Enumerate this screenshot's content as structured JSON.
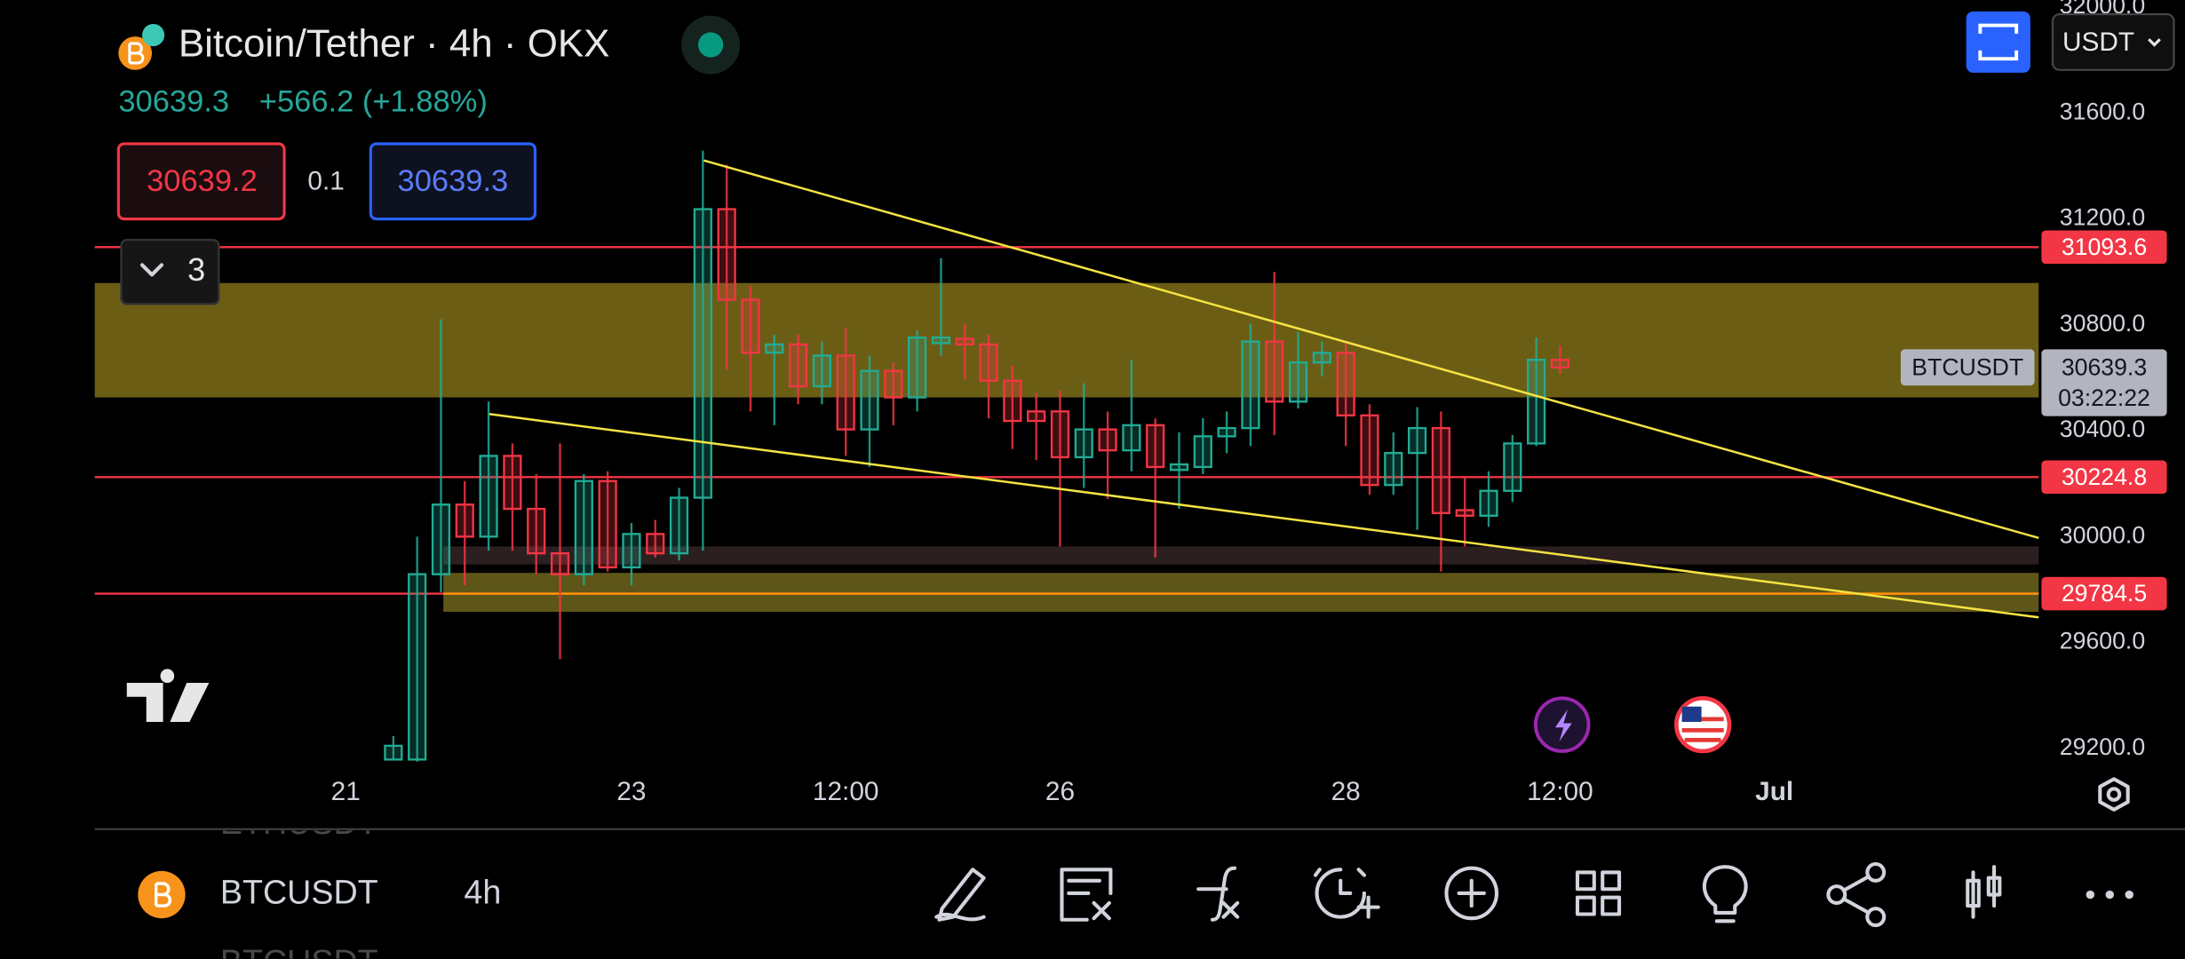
{
  "header": {
    "symbol": "Bitcoin/Tether · 4h · OKX",
    "last": "30639.3",
    "change": "+566.2 (+1.88%)",
    "bid": "30639.2",
    "spread": "0.1",
    "ask": "30639.3",
    "indicators": "3",
    "currency": "USDT"
  },
  "chart_data": {
    "type": "candlestick",
    "x": [
      2,
      3,
      4,
      5,
      6,
      7,
      8,
      9,
      10,
      11,
      12,
      13,
      14,
      15,
      16,
      17,
      18,
      19,
      20,
      21,
      22,
      23,
      24,
      25,
      26,
      27,
      28,
      29,
      30,
      31,
      32,
      33,
      34,
      35,
      36,
      37,
      38,
      39,
      40,
      41,
      42,
      43,
      44,
      45,
      46,
      47,
      48,
      49,
      50,
      51
    ],
    "open": [
      29158,
      29158,
      29858,
      30121,
      30000,
      30305,
      30105,
      29937,
      29858,
      30210,
      29884,
      30010,
      29937,
      30147,
      31237,
      30895,
      30695,
      30726,
      30568,
      30684,
      30405,
      30626,
      30526,
      30731,
      30747,
      30726,
      30589,
      30473,
      30473,
      30300,
      30405,
      30326,
      30421,
      30252,
      30263,
      30379,
      30410,
      30737,
      30510,
      30658,
      30694,
      30458,
      30195,
      30316,
      30410,
      30100,
      30079,
      30173,
      30352,
      30668
    ],
    "high": [
      29247,
      30000,
      30821,
      30210,
      30510,
      30352,
      30236,
      30352,
      30236,
      30247,
      30052,
      30063,
      30184,
      31458,
      31405,
      30947,
      30763,
      30763,
      30737,
      30789,
      30684,
      30658,
      30779,
      31052,
      30805,
      30763,
      30647,
      30542,
      30552,
      30579,
      30473,
      30668,
      30447,
      30394,
      30447,
      30473,
      30805,
      31000,
      30774,
      30737,
      30737,
      30500,
      30394,
      30489,
      30473,
      30226,
      30247,
      30384,
      30752,
      30721
    ],
    "low": [
      29158,
      29150,
      29790,
      29816,
      29947,
      29947,
      29858,
      29537,
      29816,
      29868,
      29816,
      29921,
      29910,
      29947,
      30631,
      30473,
      30421,
      30500,
      30500,
      30305,
      30263,
      30421,
      30473,
      30684,
      30594,
      30447,
      30331,
      30289,
      29963,
      30184,
      30142,
      30247,
      29921,
      30105,
      30236,
      30315,
      30342,
      30384,
      30484,
      30605,
      30342,
      30158,
      30158,
      30026,
      29868,
      29963,
      30037,
      30131,
      30342,
      30615
    ],
    "close": [
      29210,
      29858,
      30121,
      30000,
      30305,
      30105,
      29937,
      29858,
      30210,
      29884,
      30010,
      29937,
      30147,
      31237,
      30895,
      30695,
      30726,
      30568,
      30684,
      30405,
      30626,
      30526,
      30752,
      30752,
      30726,
      30589,
      30437,
      30437,
      30300,
      30405,
      30326,
      30421,
      30263,
      30273,
      30379,
      30410,
      30737,
      30510,
      30658,
      30694,
      30458,
      30195,
      30316,
      30410,
      30089,
      30079,
      30173,
      30352,
      30668,
      30639.3
    ],
    "up_color": "#22ab94",
    "down_color": "#f23645",
    "xlim": [
      -10.54,
      71.1
    ],
    "ylim": [
      28895,
      32026
    ],
    "grid": false,
    "xticks": [
      {
        "value": 0,
        "label": "21"
      },
      {
        "value": 12,
        "label": "23"
      },
      {
        "value": 21,
        "label": "12:00"
      },
      {
        "value": 30,
        "label": "26"
      },
      {
        "value": 42,
        "label": "28"
      },
      {
        "value": 51,
        "label": "12:00"
      },
      {
        "value": 60,
        "label": "Jul"
      }
    ],
    "yticks": [
      {
        "value": 29200,
        "label": "29200.0"
      },
      {
        "value": 29600,
        "label": "29600.0"
      },
      {
        "value": 30000,
        "label": "30000.0"
      },
      {
        "value": 30400,
        "label": "30400.0"
      },
      {
        "value": 30800,
        "label": "30800.0"
      },
      {
        "value": 31200,
        "label": "31200.0"
      },
      {
        "value": 31600,
        "label": "31600.0"
      },
      {
        "value": 32000,
        "label": "32000.0"
      }
    ],
    "price_lines": [
      31093.6,
      30224.8,
      29784.5
    ],
    "price_line_color": "#f23645",
    "last_price": {
      "symbol": "BTCUSDT",
      "value": 30639.3,
      "countdown": "03:22:22"
    },
    "zones": [
      {
        "x0": -10.54,
        "low": 30526,
        "high": 30958,
        "color": "#6b5e14"
      },
      {
        "x0": 4.1,
        "low": 29895,
        "high": 29963,
        "color": "#2c1f1f"
      },
      {
        "x0": 4.1,
        "low": 29716,
        "high": 29863,
        "color": "#5e5518"
      }
    ],
    "trendlines": [
      {
        "x": [
          15.04,
          71.1
        ],
        "y": [
          31421,
          29995
        ],
        "color": "#f5e342"
      },
      {
        "x": [
          6.03,
          71.1
        ],
        "y": [
          30463,
          29695
        ],
        "color": "#f5e342"
      }
    ],
    "orange_line": {
      "value": 29784.5,
      "color": "#ff9800"
    }
  },
  "footer": {
    "prev_symbol": "ETHUSDT",
    "symbol": "BTCUSDT",
    "interval": "4h",
    "next_symbol": "BTCUSDT"
  }
}
